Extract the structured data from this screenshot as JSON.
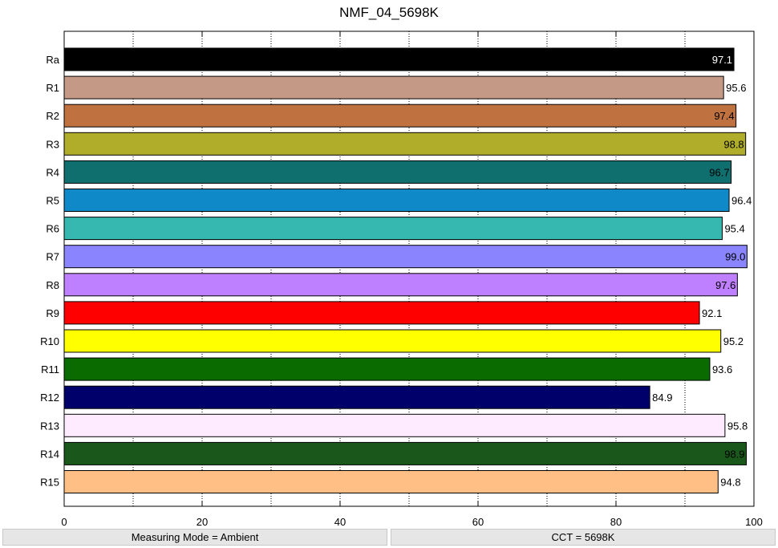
{
  "chart_data": {
    "type": "bar",
    "orientation": "horizontal",
    "title": "NMF_04_5698K",
    "xlabel": "",
    "ylabel": "",
    "xlim": [
      0,
      100
    ],
    "xticks": [
      0,
      20,
      40,
      60,
      80,
      100
    ],
    "grid": "vertical dotted",
    "categories": [
      "Ra",
      "R1",
      "R2",
      "R3",
      "R4",
      "R5",
      "R6",
      "R7",
      "R8",
      "R9",
      "R10",
      "R11",
      "R12",
      "R13",
      "R14",
      "R15"
    ],
    "values": [
      97.1,
      95.6,
      97.4,
      98.8,
      96.7,
      96.4,
      95.4,
      99.0,
      97.6,
      92.1,
      95.2,
      93.6,
      84.9,
      95.8,
      98.9,
      94.8
    ],
    "value_labels": [
      "97.1",
      "95.6",
      "97.4",
      "98.8",
      "96.7",
      "96.4",
      "95.4",
      "99.0",
      "97.6",
      "92.1",
      "95.2",
      "93.6",
      "84.9",
      "95.8",
      "98.9",
      "94.8"
    ],
    "colors": [
      "#000000",
      "#c49a87",
      "#bf7140",
      "#b0ad2b",
      "#0f6e6e",
      "#1089c9",
      "#36b8b0",
      "#8a85ff",
      "#bf80ff",
      "#ff0000",
      "#ffff00",
      "#0a6b00",
      "#00006b",
      "#ffebff",
      "#1a571a",
      "#ffbf85"
    ],
    "label_colors": [
      "#ffffff",
      "#000000",
      "#000000",
      "#000000",
      "#000000",
      "#000000",
      "#000000",
      "#000000",
      "#000000",
      "#000000",
      "#000000",
      "#000000",
      "#000000",
      "#000000",
      "#000000",
      "#000000"
    ]
  },
  "status": {
    "left": "Measuring Mode = Ambient",
    "right": "CCT = 5698K"
  }
}
